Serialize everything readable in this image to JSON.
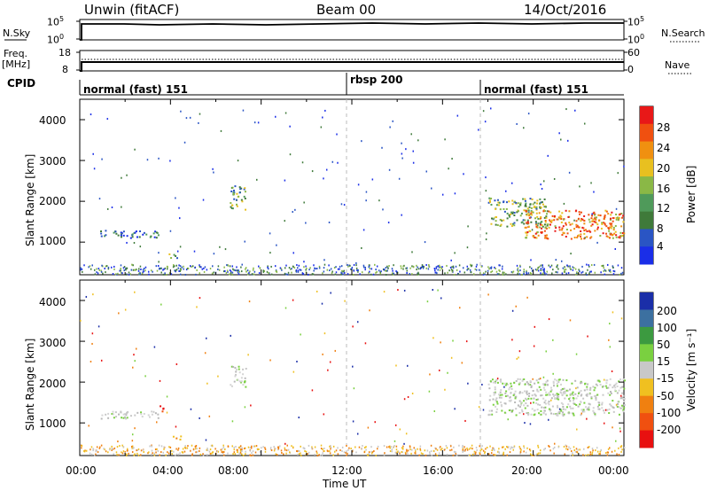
{
  "header": {
    "radar": "Unwin (fitACF)",
    "beam": "Beam 00",
    "date": "14/Oct/2016"
  },
  "nsky_panel": {
    "left_label": "N.Sky",
    "right_label": "N.Search",
    "left_ticks": [
      "10^5",
      "10^0"
    ],
    "right_ticks": [
      "10^5",
      "10^0"
    ]
  },
  "freq_panel": {
    "left_label_line1": "Freq.",
    "left_label_line2": "[MHz]",
    "left_ticks": [
      "18",
      "8"
    ],
    "right_ticks": [
      "60",
      "0"
    ],
    "right_label": "Nave"
  },
  "cpid_panel": {
    "label": "CPID",
    "segments": [
      "normal (fast) 151",
      "rbsp 200",
      "normal (fast) 151"
    ]
  },
  "chart_data": [
    {
      "type": "heatmap",
      "name": "power",
      "ylabel": "Slant Range [km]",
      "yticks": [
        "4000",
        "3000",
        "2000",
        "1000"
      ],
      "ylim": [
        200,
        4500
      ],
      "xlim": [
        0,
        24
      ],
      "colorbar": {
        "label": "Power [dB]",
        "ticks": [
          "28",
          "24",
          "20",
          "16",
          "12",
          "8",
          "4"
        ],
        "colors": [
          "#1a2ee8",
          "#2a55c4",
          "#3f7a3a",
          "#4f9a5a",
          "#8ab846",
          "#e8c020",
          "#f09010",
          "#f05010",
          "#e81818"
        ]
      },
      "features": [
        {
          "t0": 0.9,
          "t1": 3.6,
          "r0": 1120,
          "r1": 1300,
          "level": "low"
        },
        {
          "t0": 3.9,
          "t1": 4.3,
          "r0": 600,
          "r1": 760,
          "level": "mid"
        },
        {
          "t0": 6.6,
          "t1": 7.3,
          "r0": 1800,
          "r1": 2400,
          "level": "mid"
        },
        {
          "t0": 18.0,
          "t1": 20.6,
          "r0": 1400,
          "r1": 2100,
          "level": "mid"
        },
        {
          "t0": 19.6,
          "t1": 24.0,
          "r0": 1100,
          "r1": 1800,
          "level": "high"
        }
      ]
    },
    {
      "type": "heatmap",
      "name": "velocity",
      "ylabel": "Slant Range [km]",
      "yticks": [
        "4000",
        "3000",
        "2000",
        "1000"
      ],
      "ylim": [
        200,
        4500
      ],
      "xlim": [
        0,
        24
      ],
      "xticks": [
        "00:00",
        "04:00",
        "08:00",
        "12:00",
        "16:00",
        "20:00",
        "00:00"
      ],
      "xlabel": "Time UT",
      "colorbar": {
        "label": "Velocity [m s⁻¹]",
        "ticks": [
          "200",
          "100",
          "50",
          "15",
          "-15",
          "-50",
          "-100",
          "-200"
        ],
        "colors": [
          "#1a2ea8",
          "#3c70a0",
          "#3c9a40",
          "#7ad040",
          "#c8c8c8",
          "#f0c020",
          "#f08010",
          "#f05010",
          "#e81010"
        ]
      },
      "features": [
        {
          "t0": 0.9,
          "t1": 3.6,
          "r0": 1120,
          "r1": 1300,
          "level": "gray"
        },
        {
          "t0": 3.5,
          "t1": 3.9,
          "r0": 1300,
          "r1": 1450,
          "level": "red"
        },
        {
          "t0": 4.1,
          "t1": 4.5,
          "r0": 580,
          "r1": 720,
          "level": "orange"
        },
        {
          "t0": 6.6,
          "t1": 7.3,
          "r0": 1900,
          "r1": 2400,
          "level": "gray"
        },
        {
          "t0": 18.0,
          "t1": 24.0,
          "r0": 1200,
          "r1": 2100,
          "level": "gray"
        }
      ]
    }
  ]
}
